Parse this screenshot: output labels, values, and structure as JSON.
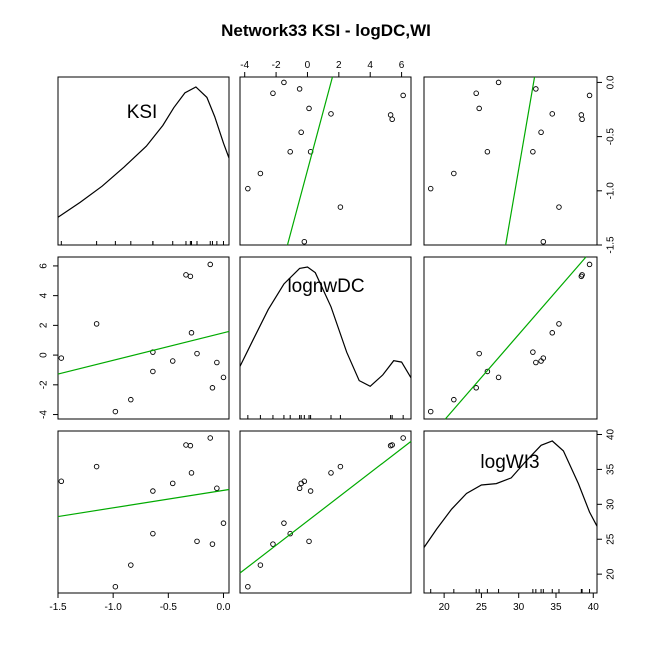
{
  "chart_data": {
    "type": "scatter",
    "title": "Network33 KSI - logDC,WI",
    "layout": "scatterplot-matrix",
    "panels_grid": "3x3",
    "diagonal": "density curves with rug",
    "off_diagonal": "scatter points with linear fit line",
    "colors": {
      "points": "#000000",
      "fit_line": "#00aa00",
      "density": "#000000",
      "frame": "#000000"
    },
    "variables": [
      {
        "name": "KSI",
        "range": [
          -1.5,
          0.05
        ],
        "ticks": [
          -1.5,
          -1.0,
          -0.5,
          0.0
        ],
        "tick_labels": [
          "-1.5",
          "-1.0",
          "-0.5",
          "0.0"
        ]
      },
      {
        "name": "lognwDC",
        "range": [
          -4.3,
          6.6
        ],
        "ticks": [
          -4,
          -2,
          0,
          2,
          4,
          6
        ],
        "tick_labels": [
          "-4",
          "-2",
          "0",
          "2",
          "4",
          "6"
        ]
      },
      {
        "name": "logWI3",
        "range": [
          17.3,
          40.5
        ],
        "ticks": [
          20,
          25,
          30,
          35,
          40
        ],
        "tick_labels": [
          "20",
          "25",
          "30",
          "35",
          "40"
        ]
      }
    ],
    "axes_shown": {
      "bottom": [
        0,
        2
      ],
      "left": [
        1
      ],
      "top": [
        1
      ],
      "right": [
        0,
        2
      ]
    },
    "observations": {
      "KSI": [
        -1.47,
        -1.15,
        -0.98,
        -0.84,
        -0.64,
        -0.64,
        -0.46,
        -0.34,
        -0.3,
        -0.29,
        -0.24,
        -0.12,
        -0.1,
        -0.06,
        0.0
      ],
      "lognwDC": [
        -0.2,
        2.1,
        -3.8,
        -3.0,
        0.2,
        -1.1,
        -0.4,
        5.4,
        5.3,
        1.5,
        0.1,
        6.1,
        -2.2,
        -0.5,
        -1.5
      ],
      "logWI3": [
        33.3,
        35.4,
        18.2,
        21.3,
        31.9,
        25.8,
        33.0,
        38.5,
        38.4,
        34.5,
        24.7,
        39.5,
        24.3,
        32.3,
        27.3
      ]
    },
    "fit_lines": {
      "KSI_vs_lognwDC": {
        "intercept": 1.5,
        "slope": 1.85
      },
      "KSI_vs_logWI3": {
        "intercept": 32.0,
        "slope": 2.5
      },
      "lognwDC_vs_logWI3": {
        "intercept": 27.6,
        "slope": 1.73
      }
    },
    "densities": {
      "KSI": [
        [
          -1.5,
          0.12
        ],
        [
          -1.3,
          0.22
        ],
        [
          -1.1,
          0.33
        ],
        [
          -0.9,
          0.46
        ],
        [
          -0.7,
          0.6
        ],
        [
          -0.55,
          0.74
        ],
        [
          -0.45,
          0.86
        ],
        [
          -0.35,
          0.96
        ],
        [
          -0.25,
          1.0
        ],
        [
          -0.15,
          0.93
        ],
        [
          -0.08,
          0.8
        ],
        [
          0.0,
          0.62
        ],
        [
          0.05,
          0.52
        ]
      ],
      "lognwDC": [
        [
          -4.3,
          0.3
        ],
        [
          -3.5,
          0.48
        ],
        [
          -2.5,
          0.7
        ],
        [
          -1.5,
          0.88
        ],
        [
          -0.5,
          0.99
        ],
        [
          0.0,
          1.0
        ],
        [
          0.5,
          0.96
        ],
        [
          1.5,
          0.72
        ],
        [
          2.5,
          0.4
        ],
        [
          3.3,
          0.2
        ],
        [
          4.0,
          0.16
        ],
        [
          4.8,
          0.24
        ],
        [
          5.5,
          0.34
        ],
        [
          6.0,
          0.33
        ],
        [
          6.6,
          0.22
        ]
      ],
      "logWI3": [
        [
          17.3,
          0.25
        ],
        [
          19.0,
          0.38
        ],
        [
          21.0,
          0.52
        ],
        [
          23.0,
          0.63
        ],
        [
          25.0,
          0.69
        ],
        [
          27.0,
          0.7
        ],
        [
          29.0,
          0.74
        ],
        [
          31.0,
          0.86
        ],
        [
          33.0,
          0.97
        ],
        [
          34.5,
          1.0
        ],
        [
          36.0,
          0.93
        ],
        [
          38.0,
          0.7
        ],
        [
          39.5,
          0.5
        ],
        [
          40.5,
          0.4
        ]
      ]
    }
  }
}
